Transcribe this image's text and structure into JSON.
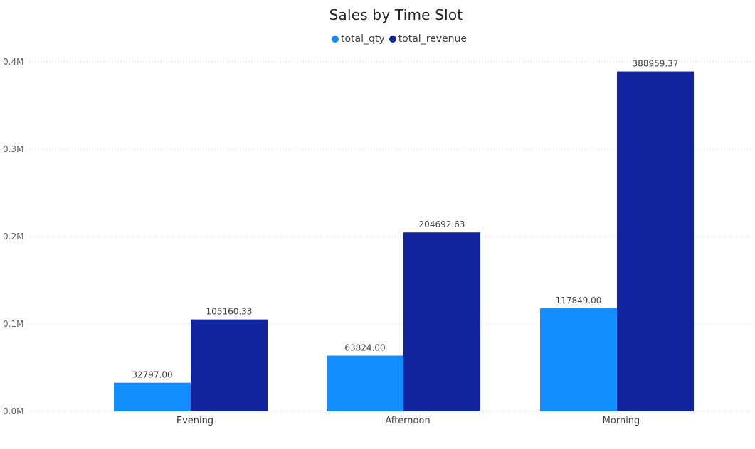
{
  "chart_data": {
    "type": "bar",
    "title": "Sales by Time Slot",
    "categories": [
      "Evening",
      "Afternoon",
      "Morning"
    ],
    "series": [
      {
        "name": "total_qty",
        "values": [
          32797.0,
          63824.0,
          117849.0
        ],
        "labels": [
          "32797.00",
          "63824.00",
          "117849.00"
        ],
        "color": "#118dff"
      },
      {
        "name": "total_revenue",
        "values": [
          105160.33,
          204692.63,
          388959.37
        ],
        "labels": [
          "105160.33",
          "204692.63",
          "388959.37"
        ],
        "color": "#12239e"
      }
    ],
    "y_ticks": [
      {
        "value": 0,
        "label": "0.0M"
      },
      {
        "value": 100000,
        "label": "0.1M"
      },
      {
        "value": 200000,
        "label": "0.2M"
      },
      {
        "value": 300000,
        "label": "0.3M"
      },
      {
        "value": 400000,
        "label": "0.4M"
      }
    ],
    "ylim": [
      0,
      400000
    ],
    "grid": true,
    "legend_position": "top-center"
  }
}
